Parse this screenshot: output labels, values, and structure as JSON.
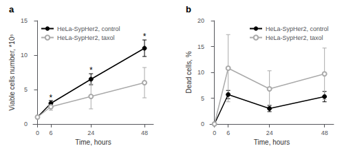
{
  "chart_data": [
    {
      "type": "line",
      "title": "a",
      "x": [
        0,
        6,
        24,
        48
      ],
      "xlabel": "Time, hours",
      "ylabel": "Viable cells number, *10⁵",
      "xlim": [
        -2,
        52
      ],
      "xticks": [
        0,
        6,
        24,
        48
      ],
      "ylim": [
        0,
        15
      ],
      "yticks": [
        0,
        5,
        10,
        15
      ],
      "grid": false,
      "legend": "upper left",
      "series": [
        {
          "name": "HeLa-SypHer2, control",
          "color": "#000000",
          "marker": "circle",
          "values": [
            1.0,
            3.0,
            6.5,
            11.0
          ],
          "yerr": [
            0.15,
            0.4,
            0.8,
            1.2
          ]
        },
        {
          "name": "HeLa-SypHer2, taxol",
          "color": "#aaaaaa",
          "marker": "open circle",
          "values": [
            1.0,
            2.5,
            4.0,
            6.0
          ],
          "yerr": [
            0.15,
            0.5,
            1.8,
            2.2
          ]
        }
      ],
      "annotations": [
        {
          "x": 6,
          "y": 3.55,
          "text": "*"
        },
        {
          "x": 24,
          "y": 7.5,
          "text": "*"
        },
        {
          "x": 48,
          "y": 12.4,
          "text": "*"
        }
      ]
    },
    {
      "type": "line",
      "title": "b",
      "x": [
        0,
        6,
        24,
        48
      ],
      "xlabel": "Time, hours",
      "ylabel": "Dead cells, %",
      "xlim": [
        -2,
        52
      ],
      "xticks": [
        0,
        6,
        24,
        48
      ],
      "ylim": [
        0,
        20
      ],
      "yticks": [
        0,
        5,
        10,
        15,
        20
      ],
      "grid": false,
      "legend": "upper right",
      "series": [
        {
          "name": "HeLa-SypHer2, control",
          "color": "#000000",
          "marker": "circle",
          "values": [
            0.0,
            5.7,
            3.0,
            5.3
          ],
          "yerr": [
            0.0,
            0.8,
            0.6,
            1.0
          ]
        },
        {
          "name": "HeLa-SypHer2, taxol",
          "color": "#aaaaaa",
          "marker": "open circle",
          "values": [
            0.0,
            10.8,
            6.8,
            9.7
          ],
          "yerr": [
            0.0,
            6.5,
            3.5,
            5.0
          ]
        }
      ]
    }
  ]
}
